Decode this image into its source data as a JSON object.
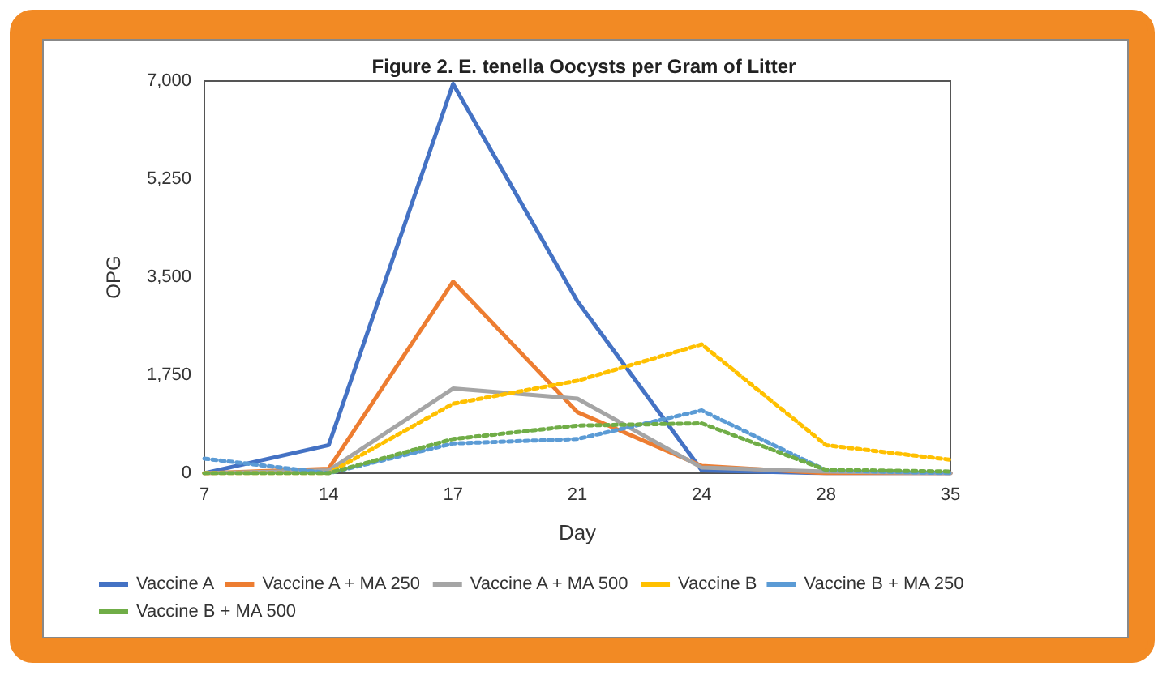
{
  "chart_data": {
    "type": "line",
    "title": "Figure 2. E. tenella Oocysts per Gram of Litter",
    "xlabel": "Day",
    "ylabel": "OPG",
    "categories": [
      "7",
      "14",
      "17",
      "21",
      "24",
      "28",
      "35"
    ],
    "ylim": [
      0,
      7000
    ],
    "yticks": [
      {
        "value": 0,
        "label": "0"
      },
      {
        "value": 1750,
        "label": "1,750"
      },
      {
        "value": 3500,
        "label": "3,500"
      },
      {
        "value": 5250,
        "label": "5,250"
      },
      {
        "value": 7000,
        "label": "7,000"
      }
    ],
    "grid": false,
    "legend": "bottom",
    "marker": "none",
    "series": [
      {
        "name": "Vaccine A",
        "color": "#4472c4",
        "line_style": "solid",
        "values": [
          0,
          500,
          6950,
          3070,
          50,
          0,
          0
        ]
      },
      {
        "name": "Vaccine A + MA 250",
        "color": "#ed7d31",
        "line_style": "solid",
        "values": [
          0,
          80,
          3420,
          1090,
          130,
          0,
          0
        ]
      },
      {
        "name": "Vaccine A + MA 500",
        "color": "#a5a5a5",
        "line_style": "solid",
        "values": [
          0,
          50,
          1510,
          1330,
          100,
          30,
          0
        ]
      },
      {
        "name": "Vaccine B",
        "color": "#ffc000",
        "line_style": "dotted",
        "values": [
          0,
          0,
          1240,
          1650,
          2300,
          500,
          240
        ]
      },
      {
        "name": "Vaccine B + MA 250",
        "color": "#5b9bd5",
        "line_style": "dotted",
        "values": [
          260,
          0,
          530,
          610,
          1120,
          50,
          0
        ]
      },
      {
        "name": "Vaccine B + MA 500",
        "color": "#70ad47",
        "line_style": "dotted",
        "values": [
          0,
          0,
          610,
          850,
          890,
          60,
          30
        ]
      }
    ]
  }
}
